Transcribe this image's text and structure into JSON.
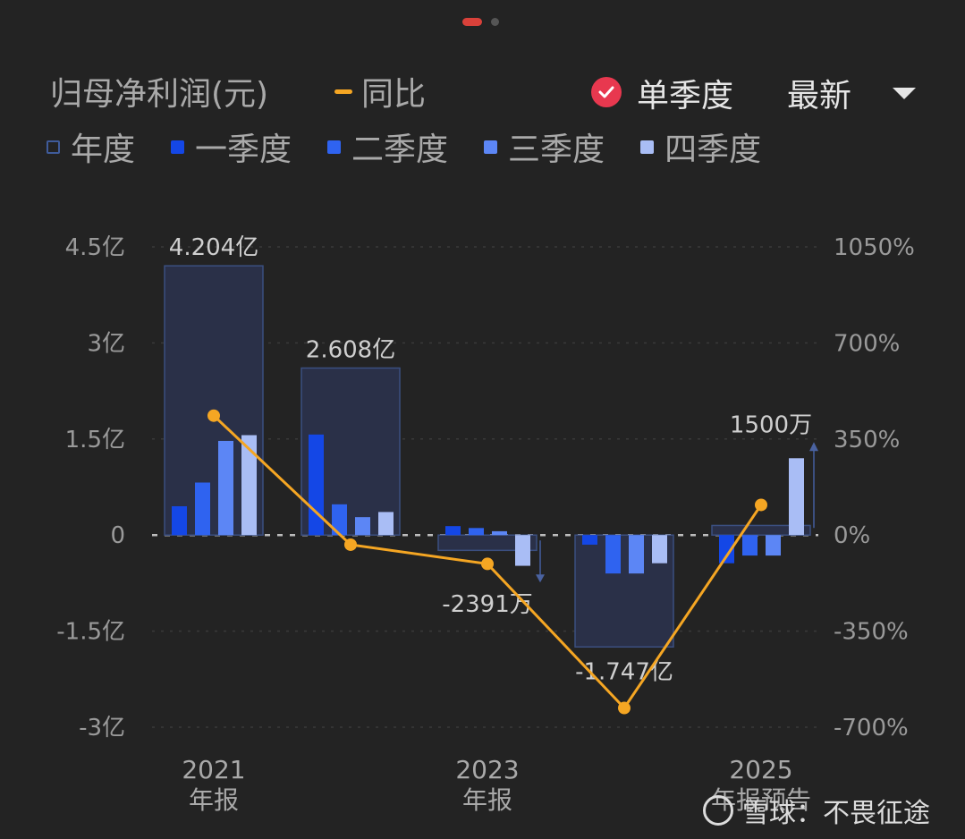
{
  "header": {
    "title": "归母净利润(元)",
    "yoy_label": "同比",
    "single_quarter_label": "单季度",
    "latest_label": "最新"
  },
  "legend": [
    {
      "label": "年度",
      "color": "#3f5b9a",
      "style": "outline"
    },
    {
      "label": "一季度",
      "color": "#1447e6",
      "style": "fill"
    },
    {
      "label": "二季度",
      "color": "#2f63f0",
      "style": "fill"
    },
    {
      "label": "三季度",
      "color": "#5c86f5",
      "style": "fill"
    },
    {
      "label": "四季度",
      "color": "#a9bdf5",
      "style": "fill"
    }
  ],
  "colors": {
    "annual_fill": "#2a3048",
    "annual_border": "#3b4f80",
    "q1": "#1447e6",
    "q2": "#2f63f0",
    "q3": "#5c86f5",
    "q4": "#a9bdf5",
    "yoy_line": "#f5a623",
    "badge": "#e8384f"
  },
  "chart_data": {
    "type": "bar",
    "left_axis": {
      "ticks": [
        "4.5亿",
        "3亿",
        "1.5亿",
        "0",
        "-1.5亿",
        "-3亿"
      ],
      "range": [
        -3,
        4.5
      ],
      "unit": "亿"
    },
    "right_axis": {
      "ticks": [
        "1050%",
        "700%",
        "350%",
        "0%",
        "-350%",
        "-700%"
      ],
      "range": [
        -700,
        1050
      ],
      "unit": "%"
    },
    "categories": [
      {
        "year": "2021",
        "sub": "年报"
      },
      {
        "year": "",
        "sub": ""
      },
      {
        "year": "2023",
        "sub": "年报"
      },
      {
        "year": "",
        "sub": ""
      },
      {
        "year": "2025",
        "sub": "年报预告"
      }
    ],
    "annual": [
      4.204,
      2.608,
      -0.2391,
      -1.747,
      0.15
    ],
    "annual_labels": [
      "4.204亿",
      "2.608亿",
      "-2391万",
      "-1.747亿",
      "1500万"
    ],
    "quarters": [
      [
        0.45,
        0.82,
        1.47,
        1.56
      ],
      [
        1.57,
        0.48,
        0.28,
        0.36
      ],
      [
        0.14,
        0.11,
        0.06,
        -0.48
      ],
      [
        -0.15,
        -0.6,
        -0.6,
        -0.44
      ],
      [
        -0.44,
        -0.32,
        -0.32,
        1.2
      ]
    ],
    "yoy": [
      435,
      -35,
      -105,
      -630,
      110
    ]
  },
  "watermark": {
    "text": "雪球：不畏征途"
  }
}
